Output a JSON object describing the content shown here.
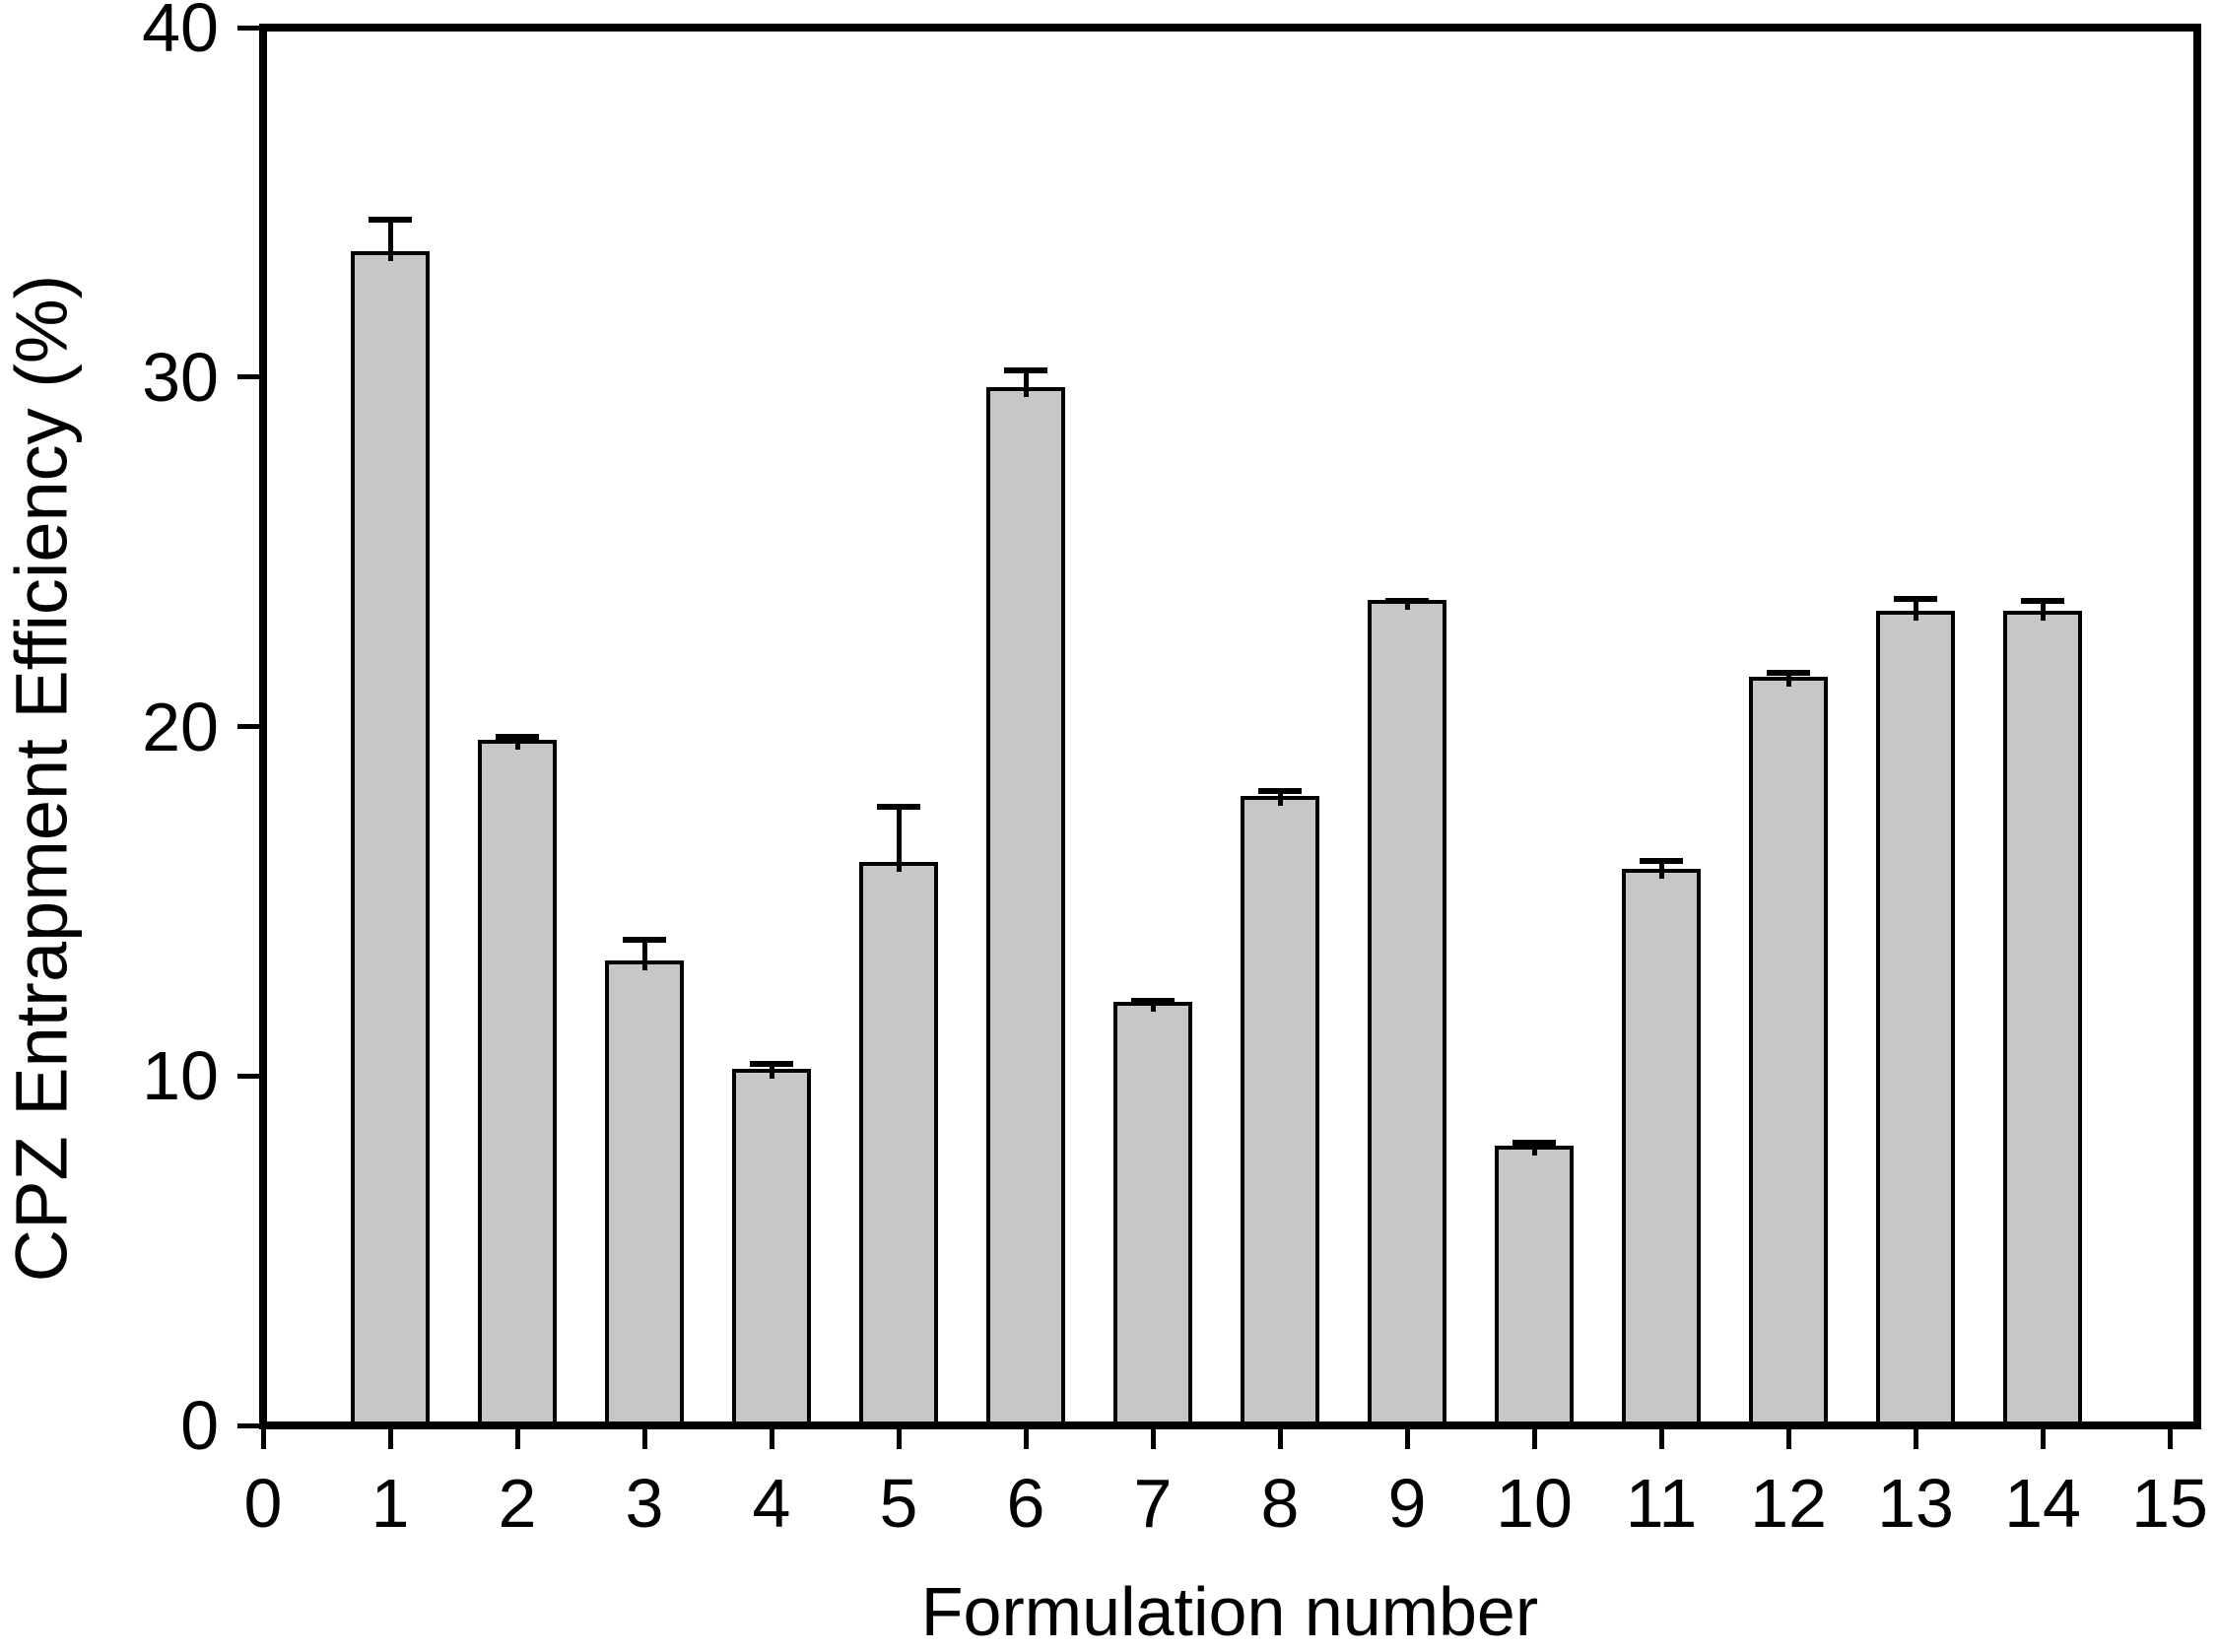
{
  "figure": {
    "background_color": "#ffffff",
    "text_color": "#000000"
  },
  "chart_data": {
    "type": "bar",
    "title": "",
    "xlabel": "Formulation number",
    "ylabel": "CPZ Entrapment Efficiency (%)",
    "categories": [
      1,
      2,
      3,
      4,
      5,
      6,
      7,
      8,
      9,
      10,
      11,
      12,
      13,
      14
    ],
    "values": [
      33.5,
      19.5,
      13.2,
      10.1,
      16.0,
      29.6,
      12.0,
      17.9,
      23.5,
      7.9,
      15.8,
      21.3,
      23.2,
      23.2
    ],
    "error_bars": [
      1.0,
      0.2,
      0.7,
      0.25,
      1.7,
      0.6,
      0.15,
      0.25,
      0.1,
      0.2,
      0.35,
      0.25,
      0.45,
      0.4
    ],
    "error_bar_direction": "up",
    "xlim": [
      0,
      15
    ],
    "ylim": [
      0,
      40
    ],
    "x_ticks": [
      0,
      1,
      2,
      3,
      4,
      5,
      6,
      7,
      8,
      9,
      10,
      11,
      12,
      13,
      14,
      15
    ],
    "y_ticks": [
      0,
      10,
      20,
      30,
      40
    ],
    "grid": false,
    "legend": "none",
    "frame": "full-box",
    "bar_fill_color": "#c7c7c7",
    "bar_edge_color": "#000000",
    "axis_color": "#000000"
  }
}
